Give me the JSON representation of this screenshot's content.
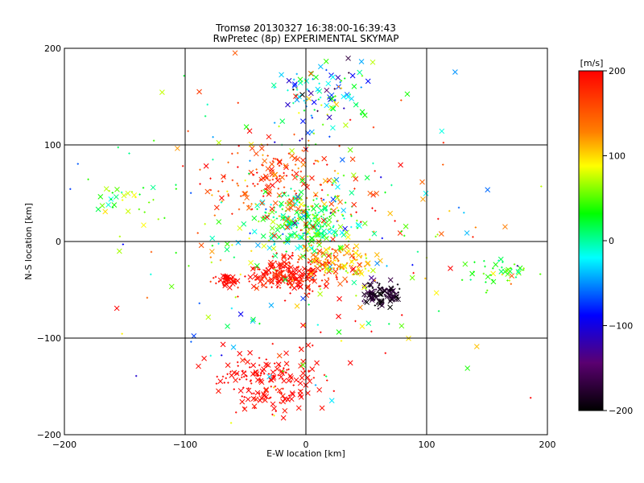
{
  "chart_data": {
    "type": "scatter",
    "title": "Tromsø 20130327 16:38:00-16:39:43",
    "subtitle": "RwPretec (8p) EXPERIMENTAL SKYMAP",
    "xlabel": "E-W location [km]",
    "ylabel": "N-S location [km]",
    "xlim": [
      -200,
      200
    ],
    "ylim": [
      -200,
      200
    ],
    "xticks": [
      -200,
      -100,
      0,
      100,
      200
    ],
    "yticks": [
      -200,
      -100,
      0,
      100,
      200
    ],
    "grid": true,
    "colorbar": {
      "label": "[m/s]",
      "min": -200,
      "max": 200,
      "ticks": [
        200,
        100,
        0,
        -100,
        -200
      ],
      "colormap": "black-purple-blue-cyan-green-yellow-orange-red"
    },
    "markers": [
      "x",
      "+"
    ],
    "points_summary": "dense cloud of Doppler velocity detections; red (~+200 m/s) dominates south of center, cyan/green (~0 m/s) near center, blue/black (~-200 m/s) cluster near (60,-55) and north",
    "clusters": [
      {
        "x_center": 0,
        "y_center": 20,
        "x_spread": 30,
        "y_spread": 25,
        "velocity_mean": 20,
        "velocity_spread": 60,
        "count": 260
      },
      {
        "x_center": -15,
        "y_center": -35,
        "x_spread": 30,
        "y_spread": 15,
        "velocity_mean": 190,
        "velocity_spread": 20,
        "count": 220
      },
      {
        "x_center": -30,
        "y_center": -145,
        "x_spread": 40,
        "y_spread": 25,
        "velocity_mean": 195,
        "velocity_spread": 10,
        "count": 180
      },
      {
        "x_center": -20,
        "y_center": 60,
        "x_spread": 45,
        "y_spread": 35,
        "velocity_mean": 170,
        "velocity_spread": 40,
        "count": 160
      },
      {
        "x_center": 62,
        "y_center": -55,
        "x_spread": 12,
        "y_spread": 10,
        "velocity_mean": -185,
        "velocity_spread": 25,
        "count": 110
      },
      {
        "x_center": 10,
        "y_center": 150,
        "x_spread": 30,
        "y_spread": 30,
        "velocity_mean": -20,
        "velocity_spread": 140,
        "count": 110
      },
      {
        "x_center": -65,
        "y_center": -40,
        "x_spread": 8,
        "y_spread": 5,
        "velocity_mean": 195,
        "velocity_spread": 8,
        "count": 50
      },
      {
        "x_center": 160,
        "y_center": -30,
        "x_spread": 20,
        "y_spread": 15,
        "velocity_mean": 40,
        "velocity_spread": 40,
        "count": 40
      },
      {
        "x_center": -155,
        "y_center": 45,
        "x_spread": 20,
        "y_spread": 15,
        "velocity_mean": 50,
        "velocity_spread": 60,
        "count": 30
      },
      {
        "x_center": 30,
        "y_center": -20,
        "x_spread": 25,
        "y_spread": 15,
        "velocity_mean": 120,
        "velocity_spread": 60,
        "count": 120
      },
      {
        "x_center": 0,
        "y_center": 0,
        "x_spread": 130,
        "y_spread": 130,
        "velocity_mean": 60,
        "velocity_spread": 150,
        "count": 300
      }
    ]
  }
}
